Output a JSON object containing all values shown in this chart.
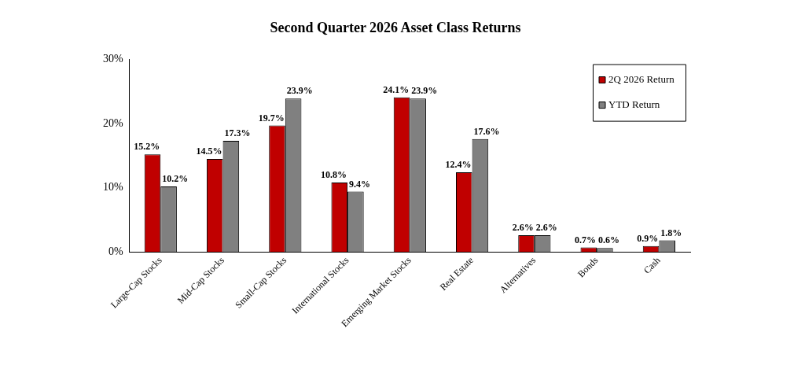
{
  "chart_data": {
    "type": "bar",
    "title": "Second Quarter 2026 Asset Class Returns",
    "categories": [
      "Large-Cap Stocks",
      "Mid-Cap Stocks",
      "Small-Cap Stocks",
      "International Stocks",
      "Emerging Market Stocks",
      "Real Estate",
      "Alternatives",
      "Bonds",
      "Cash"
    ],
    "series": [
      {
        "name": "2Q 2026 Return",
        "color": "#c00000",
        "values": [
          15.2,
          14.5,
          19.7,
          10.8,
          24.1,
          12.4,
          2.6,
          0.7,
          0.9
        ],
        "value_labels": [
          "15.2%",
          "14.5%",
          "19.7%",
          "10.8%",
          "24.1%",
          "12.4%",
          "2.6%",
          "0.7%",
          "0.9%"
        ]
      },
      {
        "name": "YTD Return",
        "color": "#808080",
        "values": [
          10.2,
          17.3,
          23.9,
          9.4,
          23.9,
          17.6,
          2.6,
          0.6,
          1.8
        ],
        "value_labels": [
          "10.2%",
          "17.3%",
          "23.9%",
          "9.4%",
          "23.9%",
          "17.6%",
          "2.6%",
          "0.6%",
          "1.8%"
        ]
      }
    ],
    "ylim": [
      0,
      30
    ],
    "yticks": [
      {
        "value": 0,
        "label": "0%"
      },
      {
        "value": 10,
        "label": "10%"
      },
      {
        "value": 20,
        "label": "20%"
      },
      {
        "value": 30,
        "label": "30%"
      }
    ],
    "legend": "top right"
  }
}
